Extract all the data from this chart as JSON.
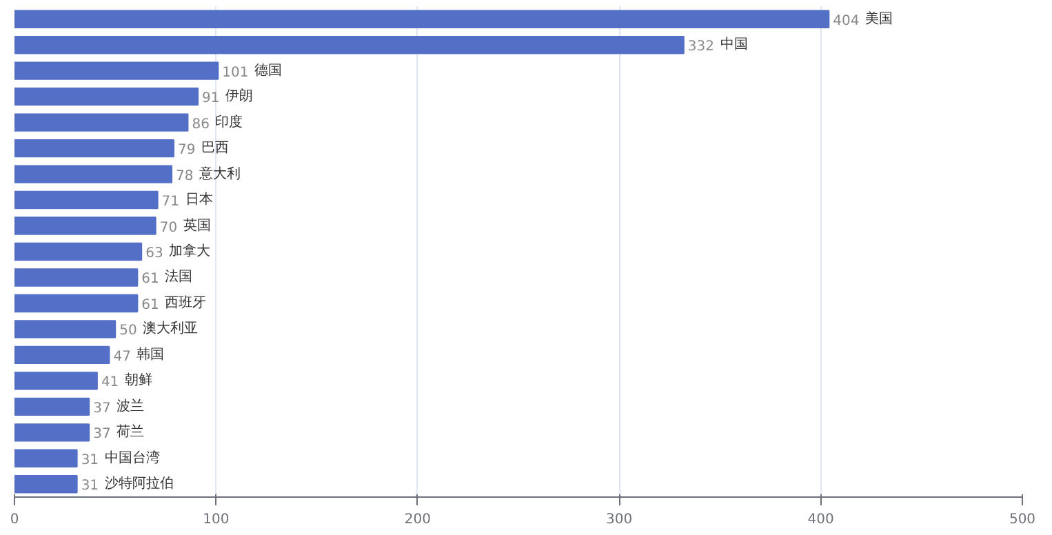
{
  "chart_data": {
    "type": "bar",
    "orientation": "horizontal",
    "categories": [
      "美国",
      "中国",
      "德国",
      "伊朗",
      "印度",
      "巴西",
      "意大利",
      "日本",
      "英国",
      "加拿大",
      "法国",
      "西班牙",
      "澳大利亚",
      "韩国",
      "朝鲜",
      "波兰",
      "荷兰",
      "中国台湾",
      "沙特阿拉伯"
    ],
    "values": [
      404,
      332,
      101,
      91,
      86,
      79,
      78,
      71,
      70,
      63,
      61,
      61,
      50,
      47,
      41,
      37,
      37,
      31,
      31
    ],
    "color": "#5470c6",
    "xlim": [
      0,
      500
    ],
    "xticks": [
      0,
      100,
      200,
      300,
      400,
      500
    ],
    "grid": "x",
    "tick_labels": "x",
    "data_labels": true
  }
}
